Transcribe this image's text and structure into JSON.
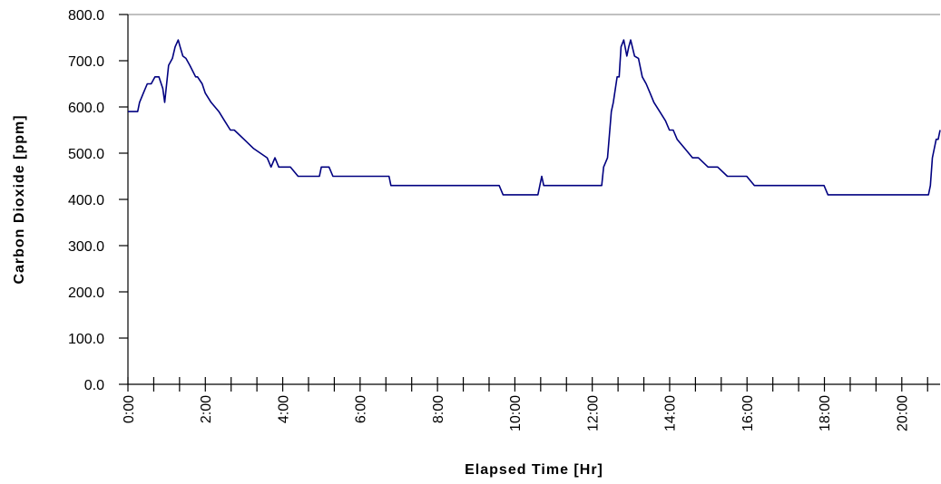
{
  "chart_data": {
    "type": "line",
    "title": "",
    "xlabel": "Elapsed Time [Hr]",
    "ylabel": "Carbon Dioxide [ppm]",
    "xlim": [
      0,
      21
    ],
    "ylim": [
      0,
      800
    ],
    "grid": false,
    "y_ticks": [
      "0.0",
      "100.0",
      "200.0",
      "300.0",
      "400.0",
      "500.0",
      "600.0",
      "700.0",
      "800.0"
    ],
    "x_ticks": [
      "0:00",
      "2:00",
      "4:00",
      "6:00",
      "8:00",
      "10:00",
      "12:00",
      "14:00",
      "16:00",
      "18:00",
      "20:00"
    ],
    "x_tick_values": [
      0,
      2,
      4,
      6,
      8,
      10,
      12,
      14,
      16,
      18,
      20
    ],
    "x_minor_step": 0.667,
    "line_color": "#000080",
    "series": [
      {
        "name": "",
        "x": [
          0,
          0.25,
          0.3,
          0.4,
          0.5,
          0.6,
          0.7,
          0.8,
          0.9,
          0.95,
          1.05,
          1.15,
          1.22,
          1.3,
          1.35,
          1.42,
          1.5,
          1.6,
          1.75,
          1.8,
          1.92,
          2.0,
          2.15,
          2.35,
          2.5,
          2.65,
          2.75,
          3.0,
          3.25,
          3.6,
          3.7,
          3.8,
          3.9,
          4.0,
          4.2,
          4.4,
          4.6,
          4.8,
          4.95,
          5.0,
          5.2,
          5.3,
          5.5,
          6.0,
          6.5,
          6.75,
          6.8,
          7.5,
          8.5,
          9.0,
          9.6,
          9.7,
          10.0,
          10.5,
          10.6,
          10.7,
          10.75,
          11.0,
          11.5,
          12.0,
          12.25,
          12.3,
          12.4,
          12.5,
          12.55,
          12.65,
          12.7,
          12.75,
          12.82,
          12.9,
          12.95,
          13.0,
          13.1,
          13.2,
          13.3,
          13.4,
          13.5,
          13.6,
          13.75,
          13.9,
          14.0,
          14.1,
          14.2,
          14.4,
          14.6,
          14.75,
          15.0,
          15.25,
          15.5,
          15.75,
          16.0,
          16.2,
          16.5,
          16.6,
          17.0,
          17.5,
          18.0,
          18.1,
          18.5,
          19.0,
          19.5,
          20.0,
          20.6,
          20.7,
          20.75,
          20.8,
          20.9,
          20.95,
          21.0
        ],
        "y": [
          590,
          590,
          610,
          630,
          650,
          650,
          665,
          665,
          640,
          610,
          690,
          705,
          730,
          745,
          730,
          710,
          705,
          690,
          665,
          665,
          650,
          630,
          610,
          590,
          570,
          550,
          550,
          530,
          510,
          490,
          470,
          490,
          470,
          470,
          470,
          450,
          450,
          450,
          450,
          470,
          470,
          450,
          450,
          450,
          450,
          450,
          430,
          430,
          430,
          430,
          430,
          410,
          410,
          410,
          410,
          450,
          430,
          430,
          430,
          430,
          430,
          470,
          490,
          590,
          610,
          665,
          665,
          730,
          745,
          710,
          730,
          745,
          710,
          705,
          665,
          650,
          630,
          610,
          590,
          570,
          550,
          550,
          530,
          510,
          490,
          490,
          470,
          470,
          450,
          450,
          450,
          430,
          430,
          430,
          430,
          430,
          430,
          410,
          410,
          410,
          410,
          410,
          410,
          410,
          430,
          490,
          530,
          530,
          550
        ]
      }
    ]
  }
}
